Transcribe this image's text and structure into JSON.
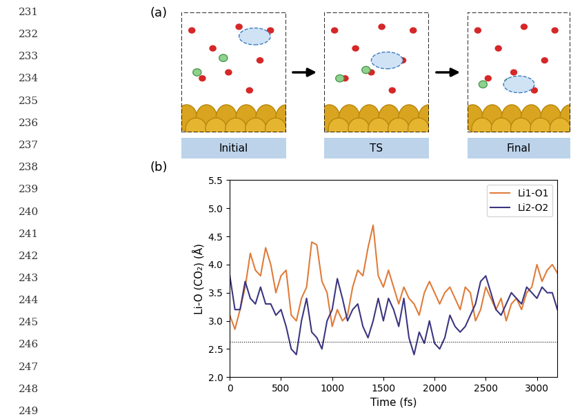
{
  "line_numbers": [
    231,
    232,
    233,
    234,
    235,
    236,
    237,
    238,
    239,
    240,
    241,
    242,
    243,
    244,
    245,
    246,
    247,
    248,
    249
  ],
  "panel_labels": [
    "(a)",
    "(b)"
  ],
  "frames": [
    "Initial",
    "TS",
    "Final"
  ],
  "chart_data": {
    "type": "line",
    "xlabel": "Time (fs)",
    "ylabel": "Li-O (CO₂) (Å)",
    "x": [
      0,
      50,
      100,
      150,
      200,
      250,
      300,
      350,
      400,
      450,
      500,
      550,
      600,
      650,
      700,
      750,
      800,
      850,
      900,
      950,
      1000,
      1050,
      1100,
      1150,
      1200,
      1250,
      1300,
      1350,
      1400,
      1450,
      1500,
      1550,
      1600,
      1650,
      1700,
      1750,
      1800,
      1850,
      1900,
      1950,
      2000,
      2050,
      2100,
      2150,
      2200,
      2250,
      2300,
      2350,
      2400,
      2450,
      2500,
      2550,
      2600,
      2650,
      2700,
      2750,
      2800,
      2850,
      2900,
      2950,
      3000,
      3050,
      3100,
      3150,
      3200
    ],
    "series": [
      {
        "name": "Li1-O1",
        "color": "#e07b39",
        "values": [
          3.1,
          2.85,
          3.2,
          3.6,
          4.2,
          3.9,
          3.8,
          4.3,
          4.0,
          3.5,
          3.8,
          3.9,
          3.1,
          3.0,
          3.4,
          3.6,
          4.4,
          4.35,
          3.7,
          3.5,
          2.9,
          3.2,
          3.0,
          3.1,
          3.6,
          3.9,
          3.8,
          4.3,
          4.7,
          3.8,
          3.6,
          3.9,
          3.6,
          3.3,
          3.6,
          3.4,
          3.3,
          3.1,
          3.5,
          3.7,
          3.5,
          3.3,
          3.5,
          3.6,
          3.4,
          3.2,
          3.6,
          3.5,
          3.0,
          3.2,
          3.6,
          3.4,
          3.2,
          3.4,
          3.0,
          3.3,
          3.4,
          3.2,
          3.5,
          3.6,
          4.0,
          3.7,
          3.9,
          4.0,
          3.85
        ]
      },
      {
        "name": "Li2-O2",
        "color": "#3b3580",
        "values": [
          3.8,
          3.2,
          3.2,
          3.7,
          3.4,
          3.3,
          3.6,
          3.3,
          3.3,
          3.1,
          3.2,
          2.9,
          2.5,
          2.4,
          3.0,
          3.4,
          2.8,
          2.7,
          2.5,
          3.0,
          3.2,
          3.75,
          3.4,
          3.0,
          3.2,
          3.3,
          2.9,
          2.7,
          3.0,
          3.4,
          3.0,
          3.4,
          3.2,
          2.9,
          3.4,
          2.7,
          2.4,
          2.8,
          2.6,
          3.0,
          2.6,
          2.5,
          2.7,
          3.1,
          2.9,
          2.8,
          2.9,
          3.1,
          3.3,
          3.7,
          3.8,
          3.5,
          3.2,
          3.1,
          3.3,
          3.5,
          3.4,
          3.3,
          3.6,
          3.5,
          3.4,
          3.6,
          3.5,
          3.5,
          3.2
        ]
      }
    ],
    "hline": 2.63,
    "xlim": [
      0,
      3200
    ],
    "xticks": [
      0,
      500,
      1000,
      1500,
      2000,
      2500,
      3000
    ],
    "ylim": [
      2.0,
      5.5
    ],
    "yticks": [
      2.0,
      2.5,
      3.0,
      3.5,
      4.0,
      4.5,
      5.0,
      5.5
    ],
    "legend": "upper right"
  }
}
